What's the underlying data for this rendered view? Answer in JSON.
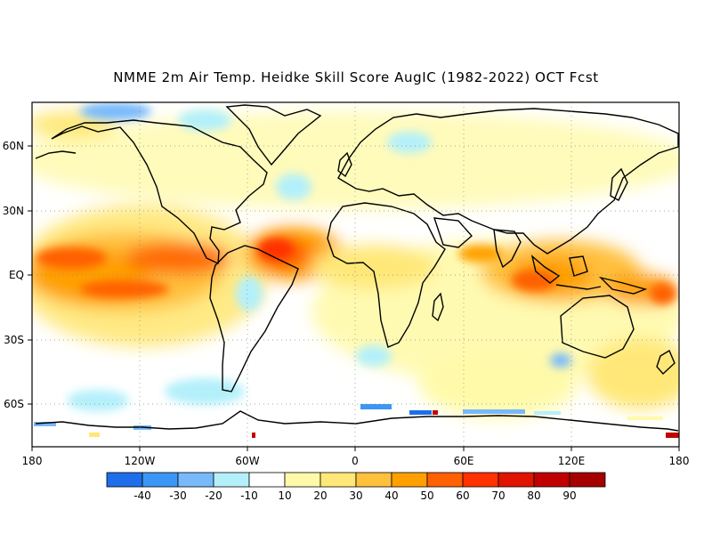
{
  "title": "NMME 2m Air Temp. Heidke Skill Score AugIC (1982-2022) OCT Fcst",
  "lat_labels": [
    "60N",
    "30N",
    "EQ",
    "30S",
    "60S"
  ],
  "lon_labels": [
    "180",
    "120W",
    "60W",
    "0",
    "60E",
    "120E",
    "180"
  ],
  "colorbar": {
    "colors": [
      "#1e6eeb",
      "#3c96f5",
      "#78b9fa",
      "#b4f0fa",
      "#ffffff",
      "#fffaaa",
      "#ffe878",
      "#ffc03c",
      "#ffa000",
      "#ff6000",
      "#ff3200",
      "#e11400",
      "#c00000",
      "#a50000"
    ],
    "tick_labels": [
      "-40",
      "-30",
      "-20",
      "-10",
      "10",
      "20",
      "30",
      "40",
      "50",
      "60",
      "70",
      "80",
      "90"
    ]
  }
}
